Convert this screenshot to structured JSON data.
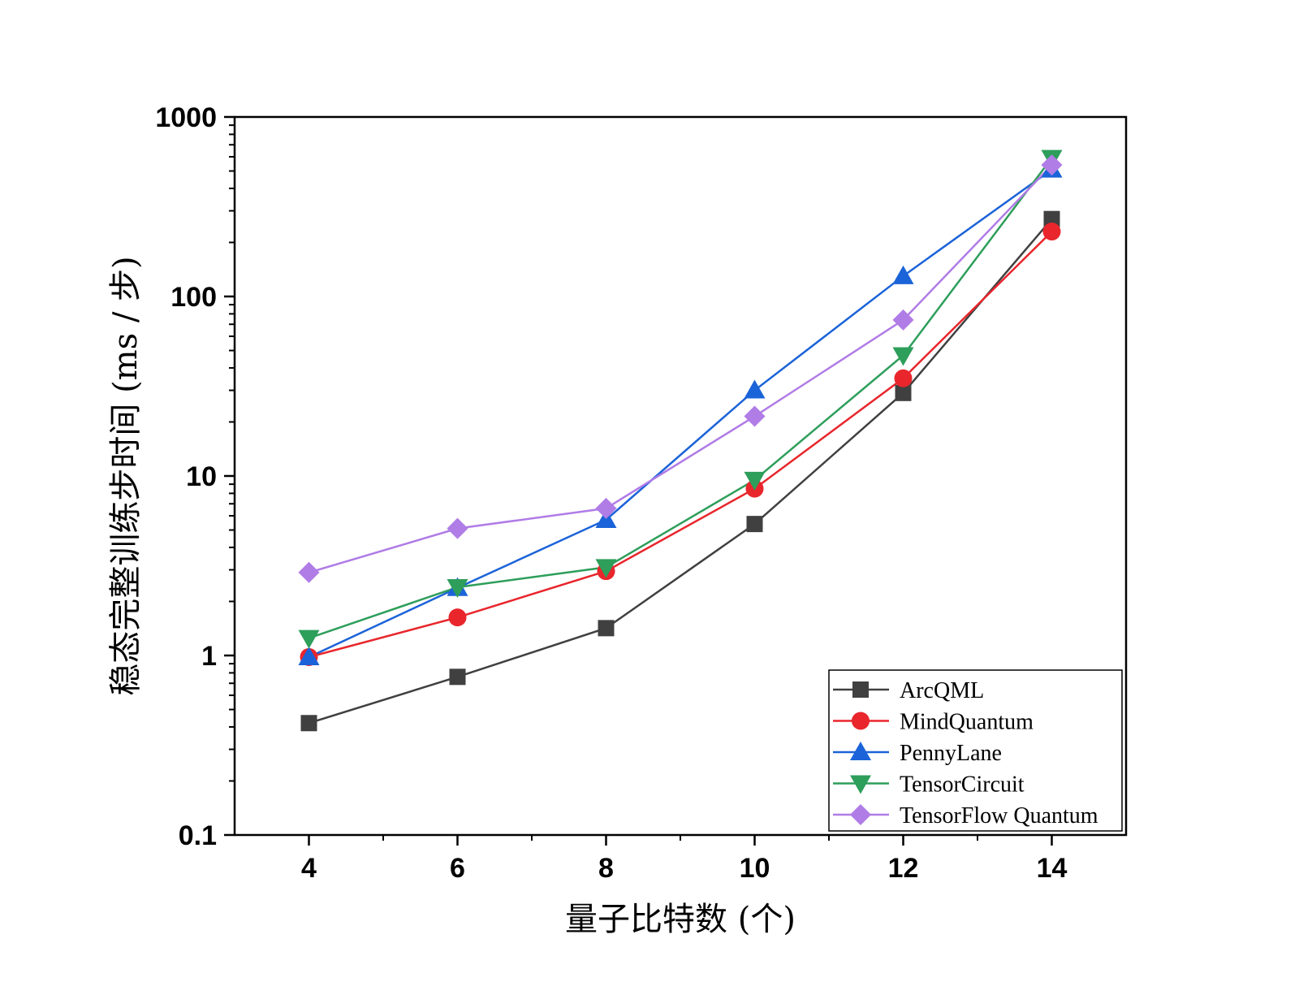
{
  "chart_data": {
    "type": "line",
    "xlabel": "量子比特数 (个)",
    "ylabel": "稳态完整训练步时间 (ms / 步)",
    "yscale": "log",
    "xlim": [
      3,
      15
    ],
    "ylim": [
      0.1,
      1000
    ],
    "xticks": [
      4,
      6,
      8,
      10,
      12,
      14
    ],
    "xtick_labels": [
      "4",
      "6",
      "8",
      "10",
      "12",
      "14"
    ],
    "yticks": [
      0.1,
      1,
      10,
      100,
      1000
    ],
    "ytick_labels": [
      "0.1",
      "1",
      "10",
      "100",
      "1000"
    ],
    "grid": false,
    "legend_position": "bottom-right",
    "x": [
      4,
      6,
      8,
      10,
      12,
      14
    ],
    "series": [
      {
        "name": "ArcQML",
        "color": "#404040",
        "marker": "square",
        "values": [
          0.42,
          0.76,
          1.42,
          5.4,
          29,
          270
        ]
      },
      {
        "name": "MindQuantum",
        "color": "#e8262c",
        "marker": "circle",
        "values": [
          0.98,
          1.63,
          2.95,
          8.5,
          35,
          230
        ]
      },
      {
        "name": "PennyLane",
        "color": "#1b63d8",
        "marker": "triangle-up",
        "values": [
          0.98,
          2.38,
          5.7,
          30,
          130,
          510
        ]
      },
      {
        "name": "TensorCircuit",
        "color": "#2e9e5b",
        "marker": "triangle-down",
        "values": [
          1.25,
          2.4,
          3.1,
          9.5,
          47,
          590
        ]
      },
      {
        "name": "TensorFlow Quantum",
        "color": "#b07ce6",
        "marker": "diamond",
        "values": [
          2.9,
          5.1,
          6.6,
          21.5,
          74,
          540
        ]
      }
    ]
  }
}
